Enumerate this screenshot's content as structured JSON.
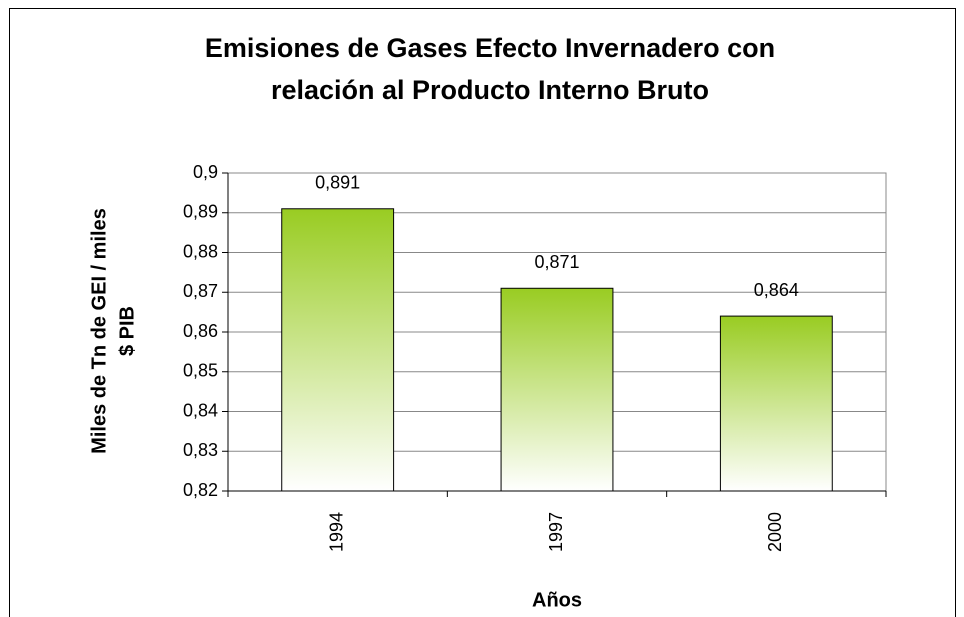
{
  "chart_data": {
    "type": "bar",
    "title": [
      "Emisiones de Gases Efecto Invernadero con",
      "relación al Producto Interno Bruto"
    ],
    "y_label": [
      "Miles de Tn de GEI / miles",
      "$ PIB"
    ],
    "x_label": "Años",
    "categories": [
      "1994",
      "1997",
      "2000"
    ],
    "values": [
      0.891,
      0.871,
      0.864
    ],
    "value_labels": [
      "0,891",
      "0,871",
      "0,864"
    ],
    "color": "#99cc22",
    "ylim": [
      0.82,
      0.9
    ],
    "yticks": [
      {
        "value": 0.82,
        "label": "0,82"
      },
      {
        "value": 0.83,
        "label": "0,83"
      },
      {
        "value": 0.84,
        "label": "0,84"
      },
      {
        "value": 0.85,
        "label": "0,85"
      },
      {
        "value": 0.86,
        "label": "0,86"
      },
      {
        "value": 0.87,
        "label": "0,87"
      },
      {
        "value": 0.88,
        "label": "0,88"
      },
      {
        "value": 0.89,
        "label": "0,89"
      },
      {
        "value": 0.9,
        "label": "0,9"
      }
    ],
    "grid": true
  }
}
